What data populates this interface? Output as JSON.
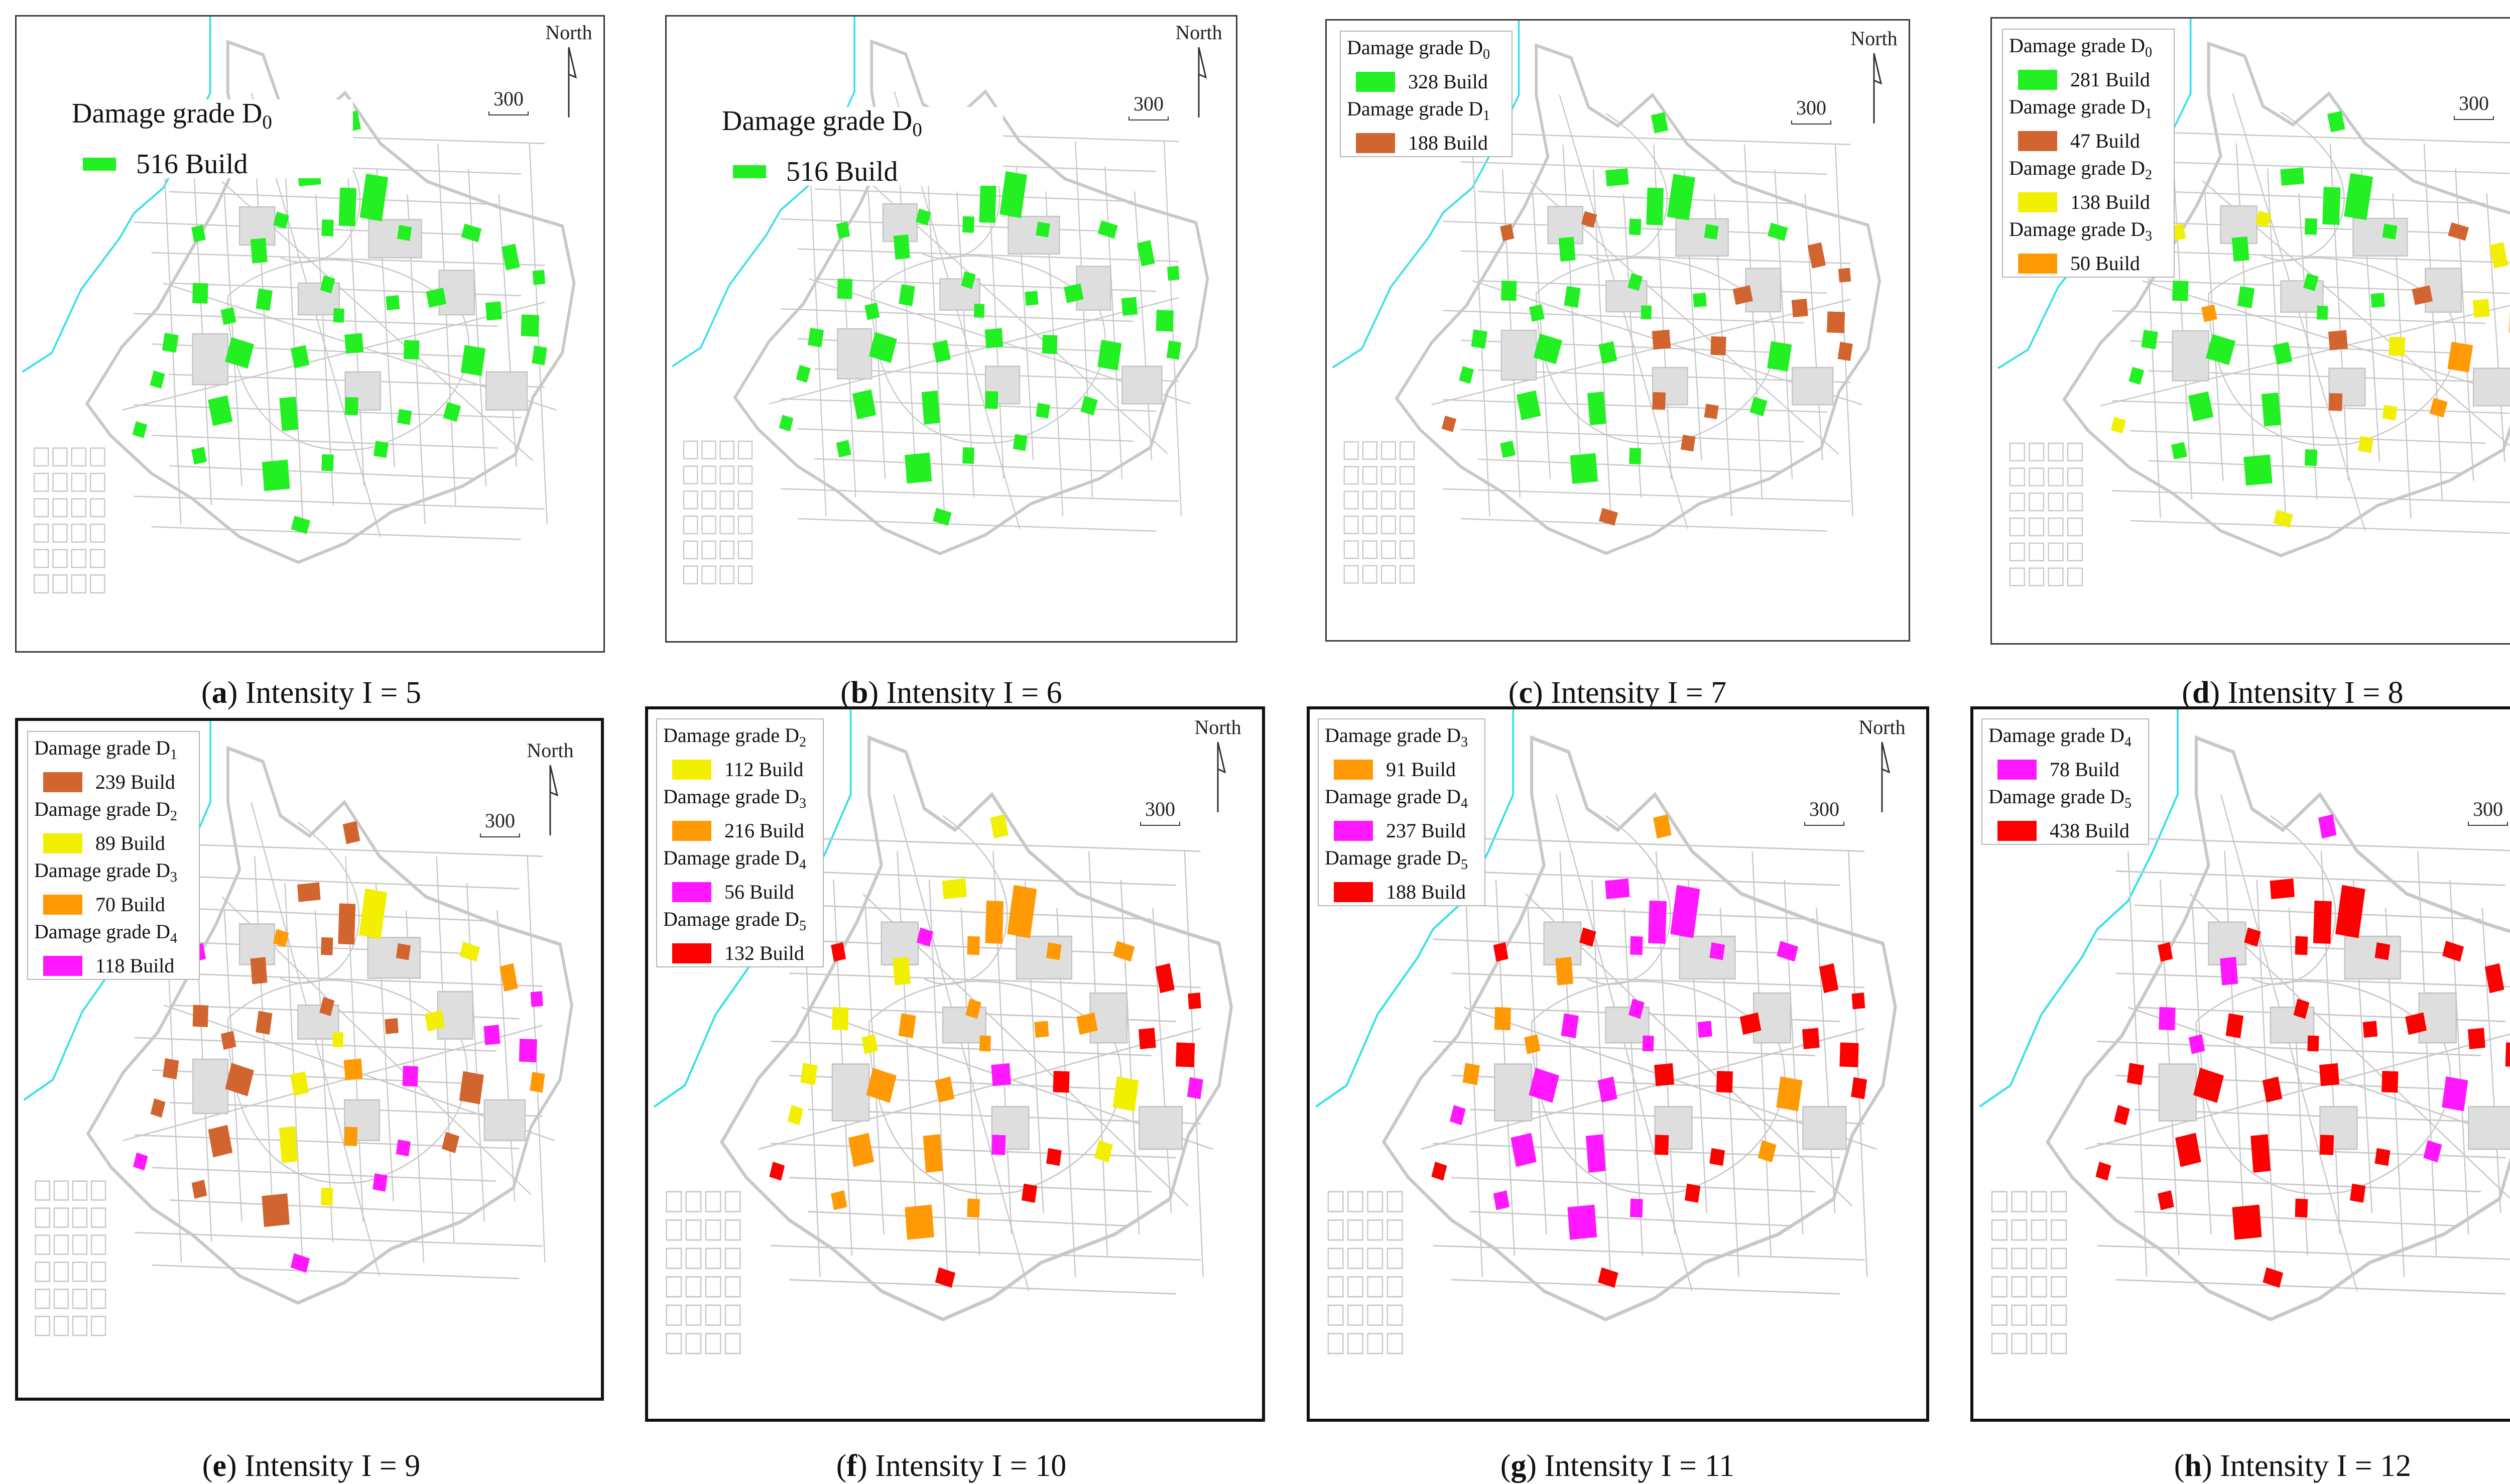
{
  "colors": {
    "D0": "#22f022",
    "D1": "#d2652f",
    "D2": "#f2ef00",
    "D3": "#ff9a05",
    "D4": "#ff18ff",
    "D5": "#ff0000",
    "coastline": "#2ee0ec",
    "roads": "#c8c8c8"
  },
  "common": {
    "north_label": "North",
    "scale_label": "300",
    "north_icon": "north-arrow-icon",
    "scale_icon": "scale-bar-icon"
  },
  "panels": [
    {
      "letter": "a",
      "caption": "Intensity I = 5",
      "legend": [
        {
          "title": "Damage grade D",
          "sub": "0",
          "count": "516 Build",
          "grade": "D0"
        }
      ]
    },
    {
      "letter": "b",
      "caption": "Intensity I = 6",
      "legend": [
        {
          "title": "Damage grade D",
          "sub": "0",
          "count": "516 Build",
          "grade": "D0"
        }
      ]
    },
    {
      "letter": "c",
      "caption": "Intensity I = 7",
      "legend": [
        {
          "title": "Damage grade D",
          "sub": "0",
          "count": "328 Build",
          "grade": "D0"
        },
        {
          "title": "Damage grade D",
          "sub": "1",
          "count": "188 Build",
          "grade": "D1"
        }
      ]
    },
    {
      "letter": "d",
      "caption": "Intensity I = 8",
      "legend": [
        {
          "title": "Damage grade D",
          "sub": "0",
          "count": "281 Build",
          "grade": "D0"
        },
        {
          "title": "Damage grade D",
          "sub": "1",
          "count": "47 Build",
          "grade": "D1"
        },
        {
          "title": "Damage grade D",
          "sub": "2",
          "count": "138 Build",
          "grade": "D2"
        },
        {
          "title": "Damage grade D",
          "sub": "3",
          "count": "50 Build",
          "grade": "D3"
        }
      ]
    },
    {
      "letter": "e",
      "caption": "Intensity I = 9",
      "legend": [
        {
          "title": "Damage grade D",
          "sub": "1",
          "count": "239 Build",
          "grade": "D1"
        },
        {
          "title": "Damage grade D",
          "sub": "2",
          "count": "89 Build",
          "grade": "D2"
        },
        {
          "title": "Damage grade D",
          "sub": "3",
          "count": "70 Build",
          "grade": "D3"
        },
        {
          "title": "Damage grade D",
          "sub": "4",
          "count": "118 Build",
          "grade": "D4"
        }
      ]
    },
    {
      "letter": "f",
      "caption": "Intensity I = 10",
      "legend": [
        {
          "title": "Damage grade D",
          "sub": "2",
          "count": "112 Build",
          "grade": "D2"
        },
        {
          "title": "Damage grade D",
          "sub": "3",
          "count": "216 Build",
          "grade": "D3"
        },
        {
          "title": "Damage grade D",
          "sub": "4",
          "count": "56 Build",
          "grade": "D4"
        },
        {
          "title": "Damage grade D",
          "sub": "5",
          "count": "132 Build",
          "grade": "D5"
        }
      ]
    },
    {
      "letter": "g",
      "caption": "Intensity I = 11",
      "legend": [
        {
          "title": "Damage grade D",
          "sub": "3",
          "count": "91 Build",
          "grade": "D3"
        },
        {
          "title": "Damage grade D",
          "sub": "4",
          "count": "237 Build",
          "grade": "D4"
        },
        {
          "title": "Damage grade D",
          "sub": "5",
          "count": "188 Build",
          "grade": "D5"
        }
      ]
    },
    {
      "letter": "h",
      "caption": "Intensity I = 12",
      "legend": [
        {
          "title": "Damage grade D",
          "sub": "4",
          "count": "78 Build",
          "grade": "D4"
        },
        {
          "title": "Damage grade D",
          "sub": "5",
          "count": "438 Build",
          "grade": "D5"
        }
      ]
    }
  ]
}
